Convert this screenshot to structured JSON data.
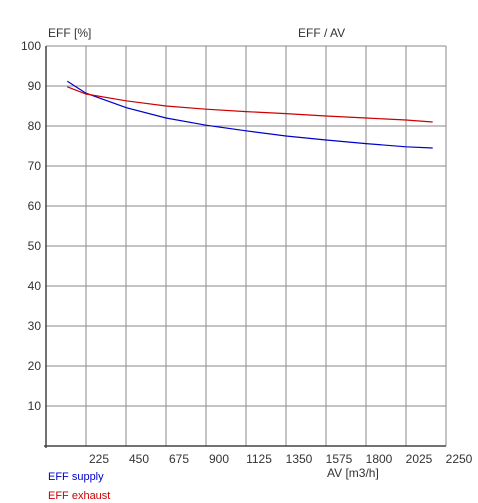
{
  "chart_data": {
    "type": "line",
    "title": "EFF / AV",
    "ylabel": "EFF [%]",
    "xlabel": "AV [m3/h]",
    "xlim": [
      0,
      2250
    ],
    "ylim": [
      0,
      100
    ],
    "x_ticks": [
      225,
      450,
      675,
      900,
      1125,
      1350,
      1575,
      1800,
      2025,
      2250
    ],
    "y_ticks": [
      10,
      20,
      30,
      40,
      50,
      60,
      70,
      80,
      90,
      100
    ],
    "grid": true,
    "legend_position": "bottom-left",
    "series": [
      {
        "name": "EFF supply",
        "color": "#0000cc",
        "points": [
          [
            120,
            91.2
          ],
          [
            225,
            88.2
          ],
          [
            450,
            84.6
          ],
          [
            675,
            82.0
          ],
          [
            900,
            80.2
          ],
          [
            1125,
            78.8
          ],
          [
            1350,
            77.5
          ],
          [
            1575,
            76.5
          ],
          [
            1800,
            75.6
          ],
          [
            2025,
            74.8
          ],
          [
            2175,
            74.5
          ]
        ]
      },
      {
        "name": "EFF exhaust",
        "color": "#cc0000",
        "points": [
          [
            120,
            89.8
          ],
          [
            225,
            88.0
          ],
          [
            450,
            86.3
          ],
          [
            675,
            85.0
          ],
          [
            900,
            84.2
          ],
          [
            1125,
            83.6
          ],
          [
            1350,
            83.1
          ],
          [
            1575,
            82.5
          ],
          [
            1800,
            82.0
          ],
          [
            2025,
            81.5
          ],
          [
            2175,
            81.0
          ]
        ]
      }
    ]
  }
}
